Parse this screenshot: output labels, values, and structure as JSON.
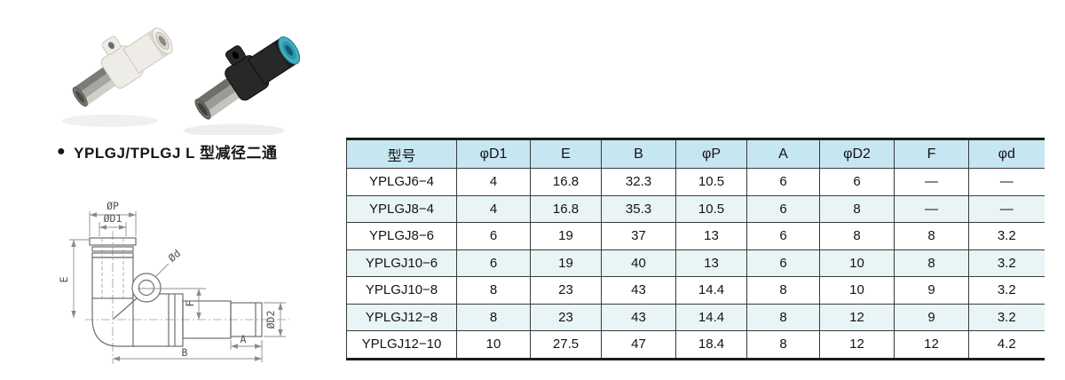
{
  "section": {
    "bullet": "●",
    "title": "YPLGJ/TPLGJ L 型减径二通"
  },
  "photos": {
    "left_fitting_alt": "white L-type push-in fitting with metal plug stem",
    "right_fitting_alt": "black L-type push-in fitting with teal collet and metal plug stem",
    "colors": {
      "white_body": "#eeece6",
      "black_body": "#282828",
      "teal_collet": "#44afc1",
      "metal": "#a7a6a0"
    }
  },
  "drawing": {
    "labels": {
      "P": "ØP",
      "D1": "ØD1",
      "E": "E",
      "d": "Ød",
      "F": "F",
      "D2": "ØD2",
      "A": "A",
      "B": "B"
    }
  },
  "table": {
    "header": [
      "型号",
      "φD1",
      "E",
      "B",
      "φP",
      "A",
      "φD2",
      "F",
      "φd"
    ],
    "rows": [
      [
        "YPLGJ6−4",
        "4",
        "16.8",
        "32.3",
        "10.5",
        "6",
        "6",
        "—",
        "—"
      ],
      [
        "YPLGJ8−4",
        "4",
        "16.8",
        "35.3",
        "10.5",
        "6",
        "8",
        "—",
        "—"
      ],
      [
        "YPLGJ8−6",
        "6",
        "19",
        "37",
        "13",
        "6",
        "8",
        "8",
        "3.2"
      ],
      [
        "YPLGJ10−6",
        "6",
        "19",
        "40",
        "13",
        "6",
        "10",
        "8",
        "3.2"
      ],
      [
        "YPLGJ10−8",
        "8",
        "23",
        "43",
        "14.4",
        "8",
        "10",
        "9",
        "3.2"
      ],
      [
        "YPLGJ12−8",
        "8",
        "23",
        "43",
        "14.4",
        "8",
        "12",
        "9",
        "3.2"
      ],
      [
        "YPLGJ12−10",
        "10",
        "27.5",
        "47",
        "18.4",
        "8",
        "12",
        "12",
        "4.2"
      ]
    ],
    "colors": {
      "header_bg": "#c6e6f2",
      "stripe_bg": "#e9f4f7",
      "border": "#3a3a3a"
    }
  }
}
